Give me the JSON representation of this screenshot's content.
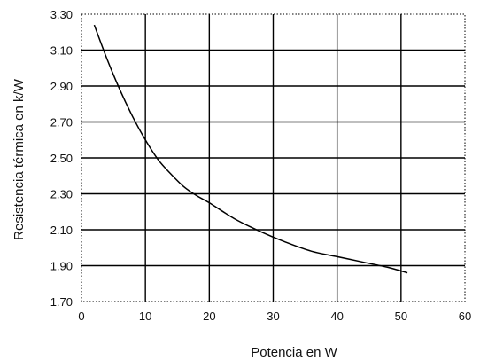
{
  "chart_data": {
    "type": "line",
    "xlabel": "Potencia en W",
    "ylabel": "Resistencia térmica en k/W",
    "xlim": [
      0,
      60
    ],
    "ylim": [
      1.7,
      3.3
    ],
    "x_ticks": [
      "0",
      "10",
      "20",
      "30",
      "40",
      "50",
      "60"
    ],
    "y_ticks": [
      "1.70",
      "1.90",
      "2.10",
      "2.30",
      "2.50",
      "2.70",
      "2.90",
      "3.10",
      "3.30"
    ],
    "grid": true,
    "series": [
      {
        "x": [
          2,
          4,
          6,
          8,
          10,
          12,
          14,
          16,
          18,
          20,
          24,
          28,
          32,
          36,
          40,
          44,
          48,
          51
        ],
        "y": [
          3.24,
          3.05,
          2.88,
          2.73,
          2.6,
          2.49,
          2.41,
          2.34,
          2.29,
          2.25,
          2.16,
          2.09,
          2.03,
          1.98,
          1.95,
          1.92,
          1.89,
          1.86
        ]
      }
    ]
  }
}
